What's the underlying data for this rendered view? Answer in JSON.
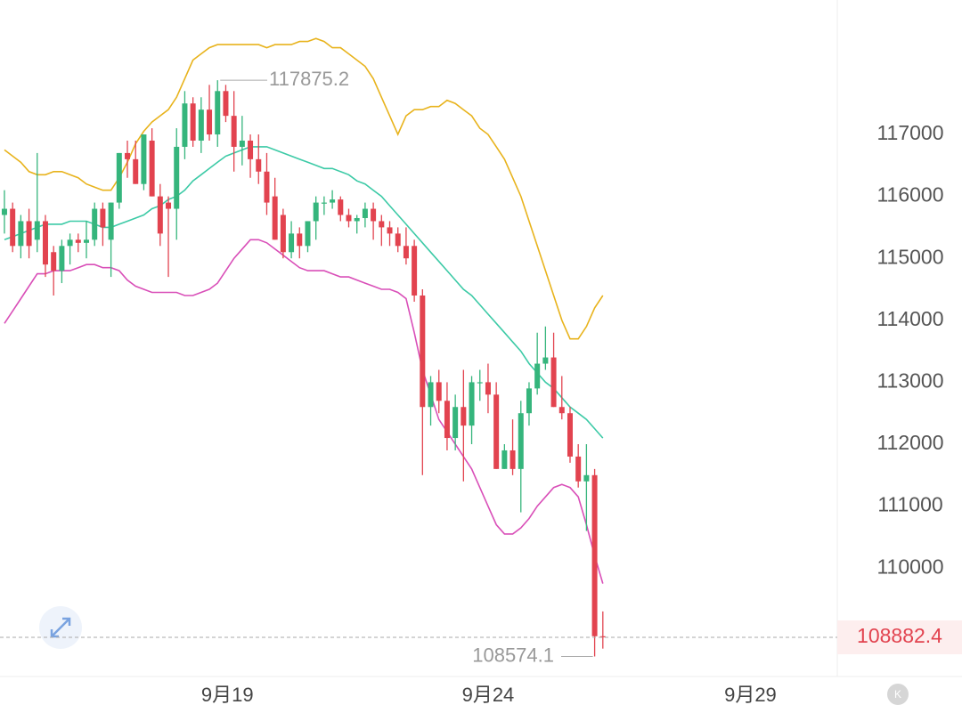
{
  "chart_data": {
    "type": "candlestick",
    "up_color": "#35b57c",
    "down_color": "#e2434f",
    "ohlc": [
      [
        115700,
        116100,
        115400,
        115800
      ],
      [
        115800,
        115900,
        115100,
        115200
      ],
      [
        115200,
        115700,
        115000,
        115600
      ],
      [
        115600,
        115800,
        115000,
        115200
      ],
      [
        115300,
        116700,
        115100,
        115600
      ],
      [
        115600,
        115700,
        114700,
        114900
      ],
      [
        115100,
        115200,
        114400,
        114800
      ],
      [
        114800,
        115300,
        114600,
        115200
      ],
      [
        115200,
        115400,
        114900,
        115300
      ],
      [
        115300,
        115400,
        115100,
        115250
      ],
      [
        115250,
        115600,
        115000,
        115300
      ],
      [
        115300,
        115900,
        115200,
        115800
      ],
      [
        115800,
        115900,
        115200,
        115500
      ],
      [
        115300,
        115900,
        114700,
        115900
      ],
      [
        115900,
        116700,
        115800,
        116700
      ],
      [
        116700,
        116900,
        116300,
        116600
      ],
      [
        116600,
        116900,
        116200,
        116200
      ],
      [
        116200,
        117000,
        116100,
        117000
      ],
      [
        116900,
        117100,
        116000,
        116000
      ],
      [
        116000,
        116200,
        115200,
        115400
      ],
      [
        115900,
        116000,
        114700,
        115800
      ],
      [
        115800,
        117100,
        115300,
        116800
      ],
      [
        116800,
        117700,
        116600,
        117500
      ],
      [
        117500,
        117600,
        116800,
        116900
      ],
      [
        116900,
        117600,
        116700,
        117400
      ],
      [
        117400,
        117800,
        116900,
        117000
      ],
      [
        117000,
        117875.2,
        116800,
        117700
      ],
      [
        117700,
        117800,
        117200,
        117300
      ],
      [
        117300,
        117700,
        116400,
        116800
      ],
      [
        116800,
        117300,
        116500,
        116900
      ],
      [
        116900,
        117000,
        116300,
        116600
      ],
      [
        116600,
        117000,
        116200,
        116400
      ],
      [
        116400,
        116700,
        115700,
        115900
      ],
      [
        116000,
        116300,
        115300,
        115300
      ],
      [
        115700,
        115800,
        115000,
        115100
      ],
      [
        115100,
        115600,
        115000,
        115400
      ],
      [
        115400,
        115500,
        115000,
        115200
      ],
      [
        115200,
        115600,
        115100,
        115600
      ],
      [
        115600,
        116000,
        115300,
        115900
      ],
      [
        115900,
        116000,
        115700,
        115900
      ],
      [
        115900,
        116100,
        115800,
        115950
      ],
      [
        115950,
        116000,
        115600,
        115700
      ],
      [
        115700,
        115800,
        115500,
        115600
      ],
      [
        115600,
        115700,
        115400,
        115650
      ],
      [
        115650,
        115900,
        115500,
        115800
      ],
      [
        115800,
        115900,
        115300,
        115600
      ],
      [
        115600,
        115700,
        115200,
        115500
      ],
      [
        115500,
        115600,
        115200,
        115400
      ],
      [
        115400,
        115500,
        115100,
        115200
      ],
      [
        115200,
        115500,
        114900,
        115000
      ],
      [
        115200,
        115300,
        114300,
        114400
      ],
      [
        114400,
        114500,
        111500,
        112600
      ],
      [
        112600,
        113100,
        112300,
        113000
      ],
      [
        113000,
        113200,
        112500,
        112700
      ],
      [
        112700,
        113000,
        111900,
        112100
      ],
      [
        112100,
        112800,
        111900,
        112600
      ],
      [
        112600,
        113200,
        111400,
        112300
      ],
      [
        112300,
        113100,
        112000,
        113000
      ],
      [
        113000,
        113200,
        112700,
        113000
      ],
      [
        113000,
        113300,
        112500,
        112800
      ],
      [
        112800,
        113000,
        111600,
        111600
      ],
      [
        111600,
        112000,
        111600,
        111900
      ],
      [
        111900,
        112400,
        111500,
        111600
      ],
      [
        111600,
        112700,
        110900,
        112500
      ],
      [
        112500,
        113000,
        112300,
        112900
      ],
      [
        112900,
        113800,
        112800,
        113300
      ],
      [
        113300,
        113900,
        113200,
        113400
      ],
      [
        113400,
        113800,
        112600,
        112600
      ],
      [
        112600,
        113100,
        112400,
        112500
      ],
      [
        112500,
        112600,
        111700,
        111800
      ],
      [
        111800,
        112000,
        111300,
        111400
      ],
      [
        111400,
        112000,
        110600,
        111500
      ],
      [
        111500,
        111600,
        108574.1,
        108900
      ],
      [
        108900,
        109300,
        108700,
        108882.4
      ]
    ],
    "bands": [
      {
        "color": "#e8b31c",
        "values": [
          116750,
          116650,
          116550,
          116400,
          116350,
          116350,
          116400,
          116400,
          116350,
          116300,
          116200,
          116150,
          116100,
          116100,
          116300,
          116550,
          116850,
          117050,
          117200,
          117300,
          117400,
          117600,
          117900,
          118200,
          118300,
          118400,
          118450,
          118450,
          118450,
          118450,
          118450,
          118450,
          118400,
          118450,
          118450,
          118450,
          118500,
          118500,
          118550,
          118500,
          118400,
          118400,
          118300,
          118200,
          118100,
          117900,
          117600,
          117300,
          117000,
          117300,
          117400,
          117400,
          117450,
          117450,
          117550,
          117500,
          117400,
          117300,
          117100,
          117000,
          116800,
          116600,
          116300,
          116000,
          115600,
          115200,
          114800,
          114400,
          114000,
          113700,
          113700,
          113900,
          114200,
          114400
        ]
      },
      {
        "color": "#3ccaa6",
        "values": [
          115300,
          115350,
          115400,
          115450,
          115500,
          115550,
          115550,
          115550,
          115600,
          115600,
          115600,
          115550,
          115500,
          115500,
          115550,
          115600,
          115650,
          115700,
          115800,
          115850,
          115950,
          116000,
          116100,
          116250,
          116350,
          116450,
          116550,
          116650,
          116700,
          116750,
          116800,
          116800,
          116800,
          116750,
          116700,
          116650,
          116600,
          116550,
          116500,
          116450,
          116450,
          116400,
          116350,
          116250,
          116200,
          116100,
          116000,
          115850,
          115700,
          115550,
          115400,
          115250,
          115100,
          114950,
          114800,
          114650,
          114500,
          114400,
          114250,
          114100,
          113950,
          113800,
          113650,
          113500,
          113300,
          113150,
          113000,
          112900,
          112750,
          112600,
          112500,
          112400,
          112250,
          112100
        ]
      },
      {
        "color": "#d94fb8",
        "values": [
          113950,
          114150,
          114350,
          114550,
          114750,
          114750,
          114800,
          114800,
          114800,
          114850,
          114900,
          114900,
          114850,
          114850,
          114800,
          114650,
          114550,
          114500,
          114450,
          114450,
          114450,
          114450,
          114400,
          114400,
          114450,
          114500,
          114600,
          114800,
          115000,
          115150,
          115300,
          115300,
          115250,
          115150,
          115050,
          114950,
          114850,
          114800,
          114800,
          114800,
          114750,
          114700,
          114700,
          114650,
          114600,
          114550,
          114500,
          114500,
          114450,
          114350,
          113800,
          113200,
          112800,
          112400,
          112200,
          112000,
          111800,
          111600,
          111300,
          111000,
          110700,
          110550,
          110550,
          110650,
          110800,
          111000,
          111150,
          111300,
          111350,
          111300,
          111150,
          110700,
          110200,
          109750
        ]
      }
    ],
    "high_label": 117875.2,
    "low_label": 108574.1,
    "last_price": 108882.4,
    "ylim": [
      108250,
      119170
    ],
    "yticks": [
      110000,
      111000,
      112000,
      113000,
      114000,
      115000,
      116000,
      117000
    ],
    "xlim": [
      -0.54,
      101.6
    ],
    "xticks": [
      {
        "value": 27.2,
        "label": "9月19"
      },
      {
        "value": 59.0,
        "label": "9月24"
      },
      {
        "value": 91.0,
        "label": "9月29"
      }
    ]
  }
}
